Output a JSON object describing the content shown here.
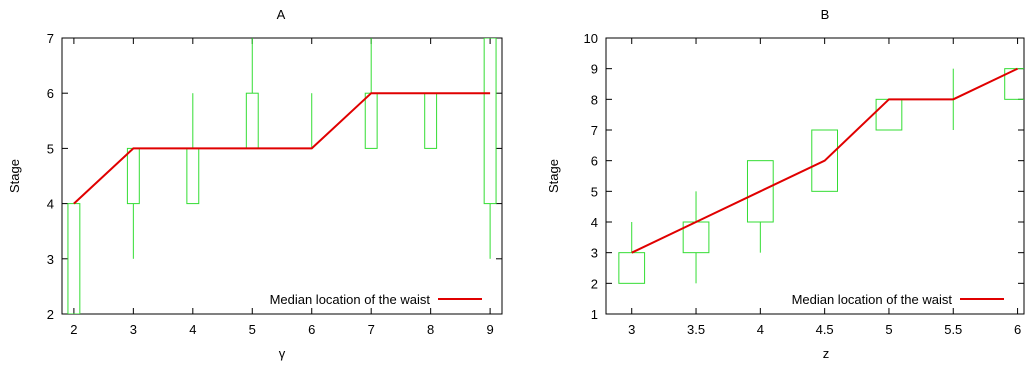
{
  "chart_data": [
    {
      "type": "boxplot",
      "title": "A",
      "xlabel": "γ",
      "ylabel": "Stage",
      "xlim": [
        1.8,
        9.2
      ],
      "ylim": [
        2,
        7
      ],
      "xticks": [
        2,
        3,
        4,
        5,
        6,
        7,
        8,
        9
      ],
      "xtick_labels": [
        "2",
        "3",
        "4",
        "5",
        "6",
        "7",
        "8",
        "9"
      ],
      "yticks": [
        2,
        3,
        4,
        5,
        6,
        7
      ],
      "ytick_labels": [
        "2",
        "3",
        "4",
        "5",
        "6",
        "7"
      ],
      "box_half_width": 0.1,
      "boxes": [
        {
          "x": 2,
          "whisker_low": 2,
          "q1": 2,
          "q3": 4,
          "whisker_high": 4
        },
        {
          "x": 3,
          "whisker_low": 3,
          "q1": 4,
          "q3": 5,
          "whisker_high": 5
        },
        {
          "x": 4,
          "whisker_low": 4,
          "q1": 4,
          "q3": 5,
          "whisker_high": 6
        },
        {
          "x": 5,
          "whisker_low": 5,
          "q1": 5,
          "q3": 6,
          "whisker_high": 7
        },
        {
          "x": 6,
          "whisker_low": 5,
          "q1": 5,
          "q3": 5,
          "whisker_high": 6
        },
        {
          "x": 7,
          "whisker_low": 5,
          "q1": 5,
          "q3": 6,
          "whisker_high": 7
        },
        {
          "x": 8,
          "whisker_low": 5,
          "q1": 5,
          "q3": 6,
          "whisker_high": 6
        },
        {
          "x": 9,
          "whisker_low": 3,
          "q1": 4,
          "q3": 7,
          "whisker_high": 7
        }
      ],
      "series": [
        {
          "name": "Median location of the waist",
          "color": "#e00000",
          "x": [
            2,
            3,
            4,
            5,
            6,
            7,
            8,
            9
          ],
          "y": [
            4,
            5,
            5,
            5,
            5,
            6,
            6,
            6
          ]
        }
      ],
      "box_color": "#33dd33",
      "legend_position": "bottom-right",
      "grid": false
    },
    {
      "type": "boxplot",
      "title": "B",
      "xlabel": "z",
      "ylabel": "Stage",
      "xlim": [
        2.8,
        6.05
      ],
      "ylim": [
        1,
        10
      ],
      "xticks": [
        3,
        3.5,
        4,
        4.5,
        5,
        5.5,
        6
      ],
      "xtick_labels": [
        "3",
        "3.5",
        "4",
        "4.5",
        "5",
        "5.5",
        "6"
      ],
      "yticks": [
        1,
        2,
        3,
        4,
        5,
        6,
        7,
        8,
        9,
        10
      ],
      "ytick_labels": [
        "1",
        "2",
        "3",
        "4",
        "5",
        "6",
        "7",
        "8",
        "9",
        "10"
      ],
      "box_half_width": 0.1,
      "boxes": [
        {
          "x": 3,
          "whisker_low": 2,
          "q1": 2,
          "q3": 3,
          "whisker_high": 4
        },
        {
          "x": 3.5,
          "whisker_low": 2,
          "q1": 3,
          "q3": 4,
          "whisker_high": 5
        },
        {
          "x": 4,
          "whisker_low": 3,
          "q1": 4,
          "q3": 6,
          "whisker_high": 6
        },
        {
          "x": 4.5,
          "whisker_low": 5,
          "q1": 5,
          "q3": 7,
          "whisker_high": 7
        },
        {
          "x": 5,
          "whisker_low": 7,
          "q1": 7,
          "q3": 8,
          "whisker_high": 8
        },
        {
          "x": 5.5,
          "whisker_low": 7,
          "q1": 8,
          "q3": 8,
          "whisker_high": 9
        },
        {
          "x": 6,
          "whisker_low": 8,
          "q1": 8,
          "q3": 9,
          "whisker_high": 9
        }
      ],
      "series": [
        {
          "name": "Median location of the waist",
          "color": "#e00000",
          "x": [
            3,
            3.5,
            4,
            4.5,
            5,
            5.5,
            6
          ],
          "y": [
            3,
            4,
            5,
            6,
            8,
            8,
            9
          ]
        }
      ],
      "box_color": "#33dd33",
      "legend_position": "bottom-right",
      "grid": false
    }
  ]
}
